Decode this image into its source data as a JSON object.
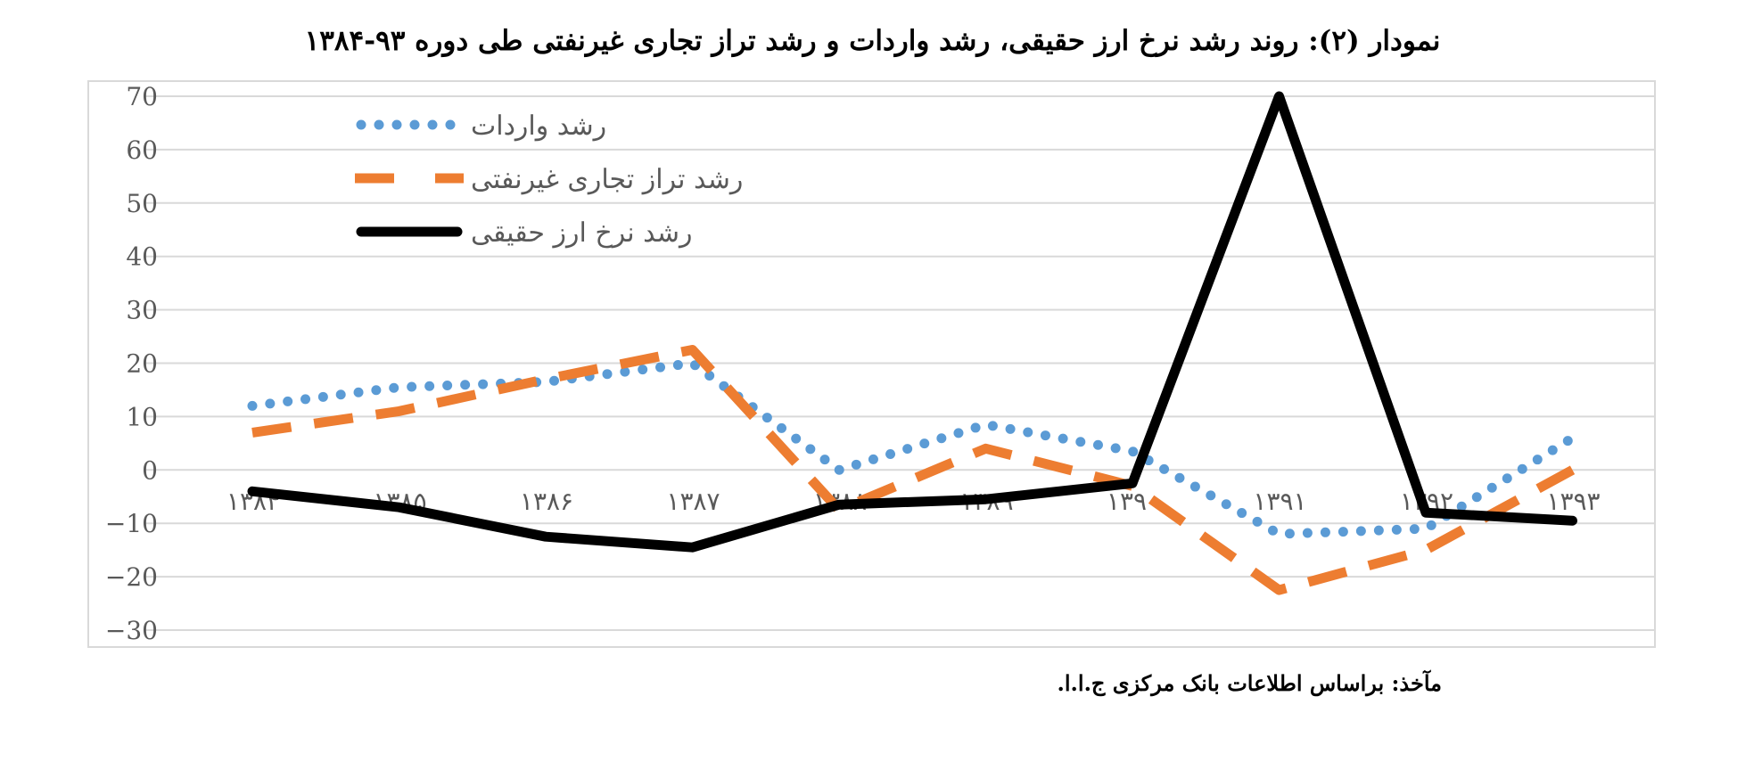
{
  "title": "نمودار (۲): روند رشد نرخ ارز حقیقی، رشد واردات و رشد تراز تجاری غیرنفتی طی دوره ۹۳-۱۳۸۴",
  "source": "مآخذ: براساس اطلاعات بانک مرکزی ج.ا.ا.",
  "colors": {
    "imports": "#5b9bd5",
    "trade_balance": "#ed7d31",
    "real_exchange_rate": "#000000",
    "grid": "#d9d9d9",
    "frame": "#d9d9d9"
  },
  "chart_data": {
    "type": "line",
    "title": "نمودار (۲): روند رشد نرخ ارز حقیقی، رشد واردات و رشد تراز تجاری غیرنفتی طی دوره ۹۳-۱۳۸۴",
    "categories": [
      "۱۳۸۴",
      "۱۳۸۵",
      "۱۳۸۶",
      "۱۳۸۷",
      "۱۳۸۸",
      "۱۳۸۹",
      "۱۳۹۰",
      "۱۳۹۱",
      "۱۳۹۲",
      "۱۳۹۳"
    ],
    "yticks": [
      "70",
      "60",
      "50",
      "40",
      "30",
      "20",
      "10",
      "0",
      "−10",
      "−20",
      "−30"
    ],
    "ylim": [
      -30,
      70
    ],
    "grid": true,
    "legend_position": "top-left",
    "series": [
      {
        "name": "رشد واردات",
        "style": "dotted",
        "values": [
          12,
          15.5,
          16.5,
          20,
          0,
          8.5,
          3.5,
          -12,
          -11,
          6
        ]
      },
      {
        "name": "رشد تراز تجاری غیرنفتی",
        "style": "dashed",
        "values": [
          7,
          11,
          17,
          22.5,
          -7.5,
          4,
          -3,
          -22.5,
          -15,
          0
        ]
      },
      {
        "name": "رشد نرخ ارز حقیقی",
        "style": "solid",
        "values": [
          -4,
          -7,
          -12.5,
          -14.5,
          -6.5,
          -5.5,
          -2.5,
          70,
          -8,
          -9.5
        ]
      }
    ]
  }
}
